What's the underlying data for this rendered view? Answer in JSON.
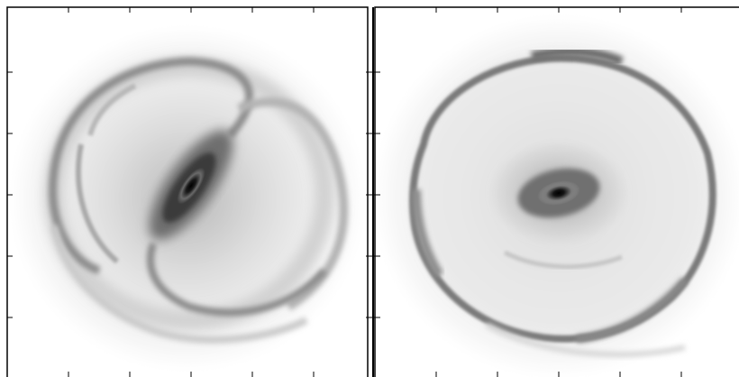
{
  "figure": {
    "panels": [
      {
        "id": "left",
        "morphology": "barred-spiral"
      },
      {
        "id": "right",
        "morphology": "ring"
      }
    ],
    "colormap": "gray-inverted",
    "axis_labels": false,
    "tick_labels": false
  }
}
